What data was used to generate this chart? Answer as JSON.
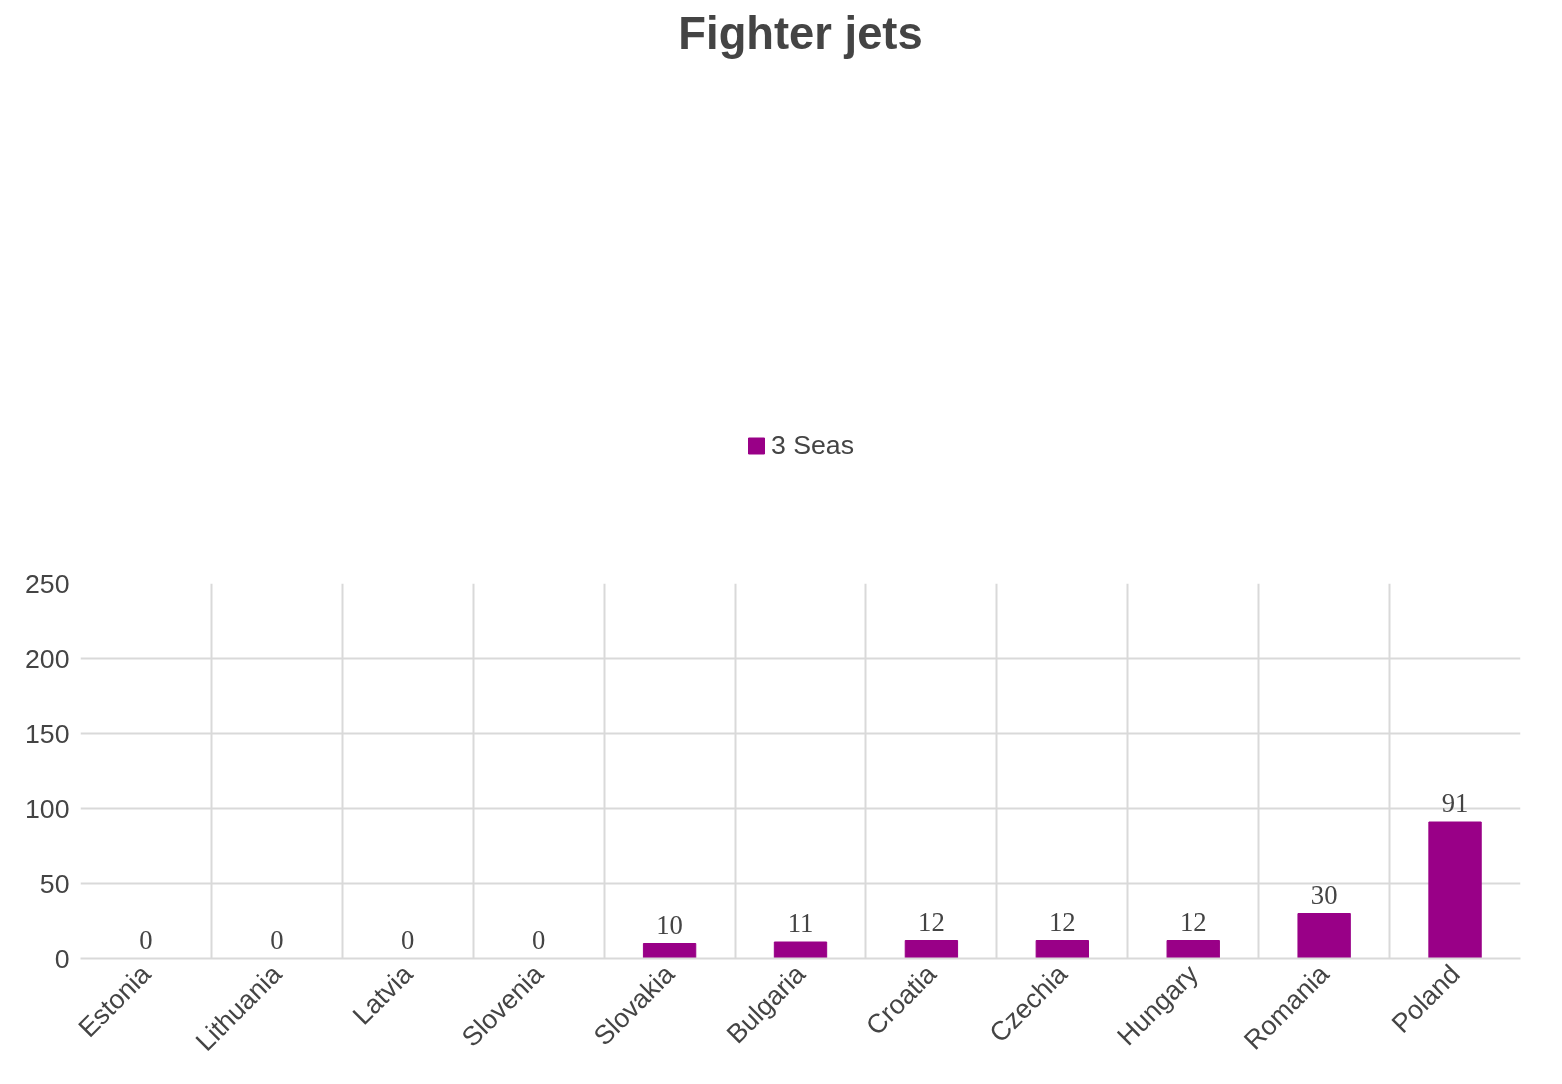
{
  "chart_data": {
    "type": "bar",
    "title": "Fighter jets",
    "categories": [
      "Estonia",
      "Lithuania",
      "Latvia",
      "Slovenia",
      "Slovakia",
      "Bulgaria",
      "Croatia",
      "Czechia",
      "Hungary",
      "Romania",
      "Poland"
    ],
    "series": [
      {
        "name": "3 Seas",
        "color": "#990087",
        "values": [
          0,
          0,
          0,
          0,
          10,
          11,
          12,
          12,
          12,
          30,
          91
        ]
      }
    ],
    "ylim": [
      0,
      250
    ],
    "yticks": [
      0,
      50,
      100,
      150,
      200,
      250
    ],
    "grid": true,
    "legend": "top",
    "data_labels": true
  }
}
